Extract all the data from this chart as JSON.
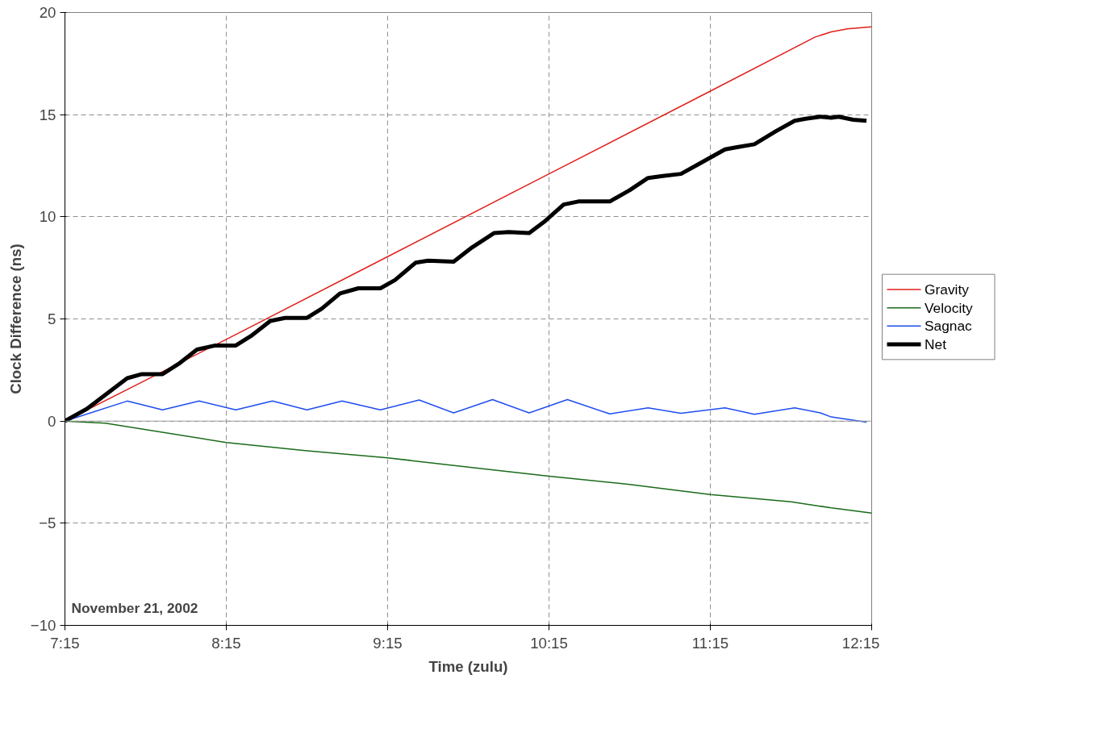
{
  "chart_data": {
    "type": "line",
    "xlabel": "Time (zulu)",
    "ylabel": "Clock Difference (ns)",
    "xlim": [
      7.25,
      12.25
    ],
    "ylim": [
      -10,
      20
    ],
    "xticks": [
      {
        "value": 7.25,
        "label": "7:15"
      },
      {
        "value": 8.25,
        "label": "8:15"
      },
      {
        "value": 9.25,
        "label": "9:15"
      },
      {
        "value": 10.25,
        "label": "10:15"
      },
      {
        "value": 11.25,
        "label": "11:15"
      },
      {
        "value": 12.25,
        "label": "12:15"
      }
    ],
    "yticks": [
      -10,
      -5,
      0,
      5,
      10,
      15,
      20
    ],
    "grid": true,
    "legend": "right",
    "line_style": "solid",
    "marker": "none",
    "ref_lines": [
      {
        "axis": "y",
        "value": 0,
        "color": "#a0a0a0"
      }
    ],
    "annotations": [
      "November 21, 2002"
    ],
    "series": [
      {
        "name": "Gravity",
        "color": "#e0201b",
        "x": [
          7.25,
          8.25,
          9.25,
          10.25,
          11.25,
          11.9,
          12.0,
          12.1,
          12.25
        ],
        "values": [
          0,
          4.0,
          8.05,
          12.1,
          16.15,
          18.8,
          19.05,
          19.2,
          19.3
        ]
      },
      {
        "name": "Velocity",
        "color": "#1a6b1a",
        "x": [
          7.25,
          7.5,
          8.25,
          8.75,
          9.25,
          9.75,
          10.25,
          10.75,
          11.25,
          11.75,
          12.0,
          12.25
        ],
        "values": [
          0,
          -0.1,
          -1.05,
          -1.45,
          -1.8,
          -2.25,
          -2.7,
          -3.1,
          -3.6,
          -3.95,
          -4.25,
          -4.5
        ]
      },
      {
        "name": "Sagnac",
        "color": "#1e4cf0",
        "x": [
          7.25,
          7.636,
          7.855,
          8.082,
          8.309,
          8.536,
          8.75,
          8.968,
          9.205,
          9.445,
          9.659,
          9.9,
          10.127,
          10.364,
          10.627,
          10.864,
          11.068,
          11.341,
          11.523,
          11.773,
          11.932,
          12.0,
          12.218
        ],
        "values": [
          0,
          0.98,
          0.55,
          0.98,
          0.55,
          0.98,
          0.55,
          0.98,
          0.55,
          1.03,
          0.4,
          1.05,
          0.4,
          1.05,
          0.35,
          0.65,
          0.38,
          0.65,
          0.33,
          0.65,
          0.4,
          0.2,
          -0.05
        ]
      },
      {
        "name": "Net",
        "color": "#000000",
        "x": [
          7.25,
          7.386,
          7.636,
          7.727,
          7.855,
          7.955,
          8.068,
          8.182,
          8.309,
          8.409,
          8.523,
          8.614,
          8.75,
          8.841,
          8.955,
          9.068,
          9.205,
          9.295,
          9.423,
          9.5,
          9.659,
          9.773,
          9.909,
          10.0,
          10.127,
          10.227,
          10.341,
          10.432,
          10.627,
          10.75,
          10.864,
          10.955,
          11.068,
          11.182,
          11.341,
          11.409,
          11.523,
          11.659,
          11.773,
          11.841,
          11.932,
          12.0,
          12.045,
          12.136,
          12.218
        ],
        "values": [
          0,
          0.6,
          2.1,
          2.3,
          2.3,
          2.8,
          3.5,
          3.7,
          3.7,
          4.2,
          4.9,
          5.05,
          5.05,
          5.5,
          6.25,
          6.5,
          6.5,
          6.9,
          7.75,
          7.85,
          7.8,
          8.5,
          9.2,
          9.25,
          9.2,
          9.8,
          10.6,
          10.75,
          10.75,
          11.3,
          11.9,
          12.0,
          12.1,
          12.6,
          13.3,
          13.4,
          13.55,
          14.2,
          14.7,
          14.8,
          14.9,
          14.85,
          14.9,
          14.75,
          14.7
        ]
      }
    ]
  }
}
